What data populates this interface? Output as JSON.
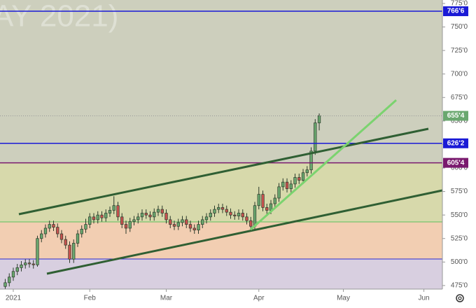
{
  "chart_data": {
    "type": "candlestick",
    "watermark": "AY 2021)",
    "x": [
      -2,
      -1,
      0,
      1,
      2,
      3,
      4,
      5,
      6,
      7,
      8,
      9,
      10,
      11,
      12,
      13,
      14,
      15,
      16,
      17,
      18,
      19,
      20,
      21,
      22,
      23,
      24,
      25,
      26,
      27,
      28,
      29,
      30,
      31,
      32,
      33,
      34,
      35,
      36,
      37,
      38,
      39,
      40,
      41,
      42,
      43,
      44,
      45,
      46,
      47,
      48,
      49,
      50,
      51,
      52,
      53,
      54,
      55,
      56,
      57,
      58,
      59,
      60,
      61,
      62,
      63,
      64,
      65,
      66,
      67,
      68,
      69,
      70,
      71,
      72,
      73,
      74,
      75,
      76
    ],
    "open": [
      474,
      478,
      484,
      490,
      494,
      497,
      499,
      498,
      497,
      525,
      530,
      536,
      540,
      537,
      530,
      524,
      518,
      503,
      520,
      530,
      535,
      540,
      548,
      545,
      550,
      547,
      552,
      555,
      560,
      548,
      540,
      536,
      543,
      545,
      548,
      552,
      550,
      548,
      553,
      556,
      552,
      545,
      540,
      538,
      542,
      545,
      540,
      536,
      534,
      540,
      545,
      548,
      552,
      556,
      558,
      556,
      553,
      550,
      549,
      552,
      548,
      544,
      538,
      560,
      572,
      558,
      555,
      562,
      568,
      580,
      585,
      578,
      583,
      590,
      587,
      595,
      598,
      618,
      648
    ],
    "high": [
      482,
      488,
      494,
      498,
      501,
      503,
      503,
      502,
      528,
      534,
      540,
      544,
      544,
      541,
      534,
      528,
      522,
      524,
      534,
      539,
      546,
      552,
      552,
      554,
      554,
      556,
      559,
      570,
      564,
      552,
      544,
      547,
      549,
      552,
      556,
      556,
      554,
      557,
      560,
      560,
      556,
      549,
      544,
      546,
      549,
      549,
      544,
      540,
      544,
      549,
      552,
      556,
      560,
      562,
      562,
      560,
      557,
      554,
      556,
      556,
      552,
      548,
      564,
      580,
      576,
      562,
      566,
      572,
      584,
      589,
      589,
      587,
      594,
      594,
      599,
      602,
      622,
      652,
      658
    ],
    "low": [
      470,
      474,
      480,
      486,
      490,
      493,
      494,
      493,
      495,
      521,
      526,
      532,
      533,
      526,
      520,
      514,
      499,
      499,
      516,
      526,
      531,
      536,
      541,
      541,
      543,
      543,
      548,
      551,
      544,
      536,
      530,
      532,
      539,
      541,
      544,
      546,
      544,
      544,
      549,
      548,
      541,
      536,
      534,
      534,
      538,
      536,
      532,
      530,
      530,
      536,
      541,
      544,
      548,
      552,
      552,
      549,
      546,
      545,
      545,
      544,
      540,
      534,
      534,
      556,
      554,
      551,
      551,
      558,
      564,
      576,
      574,
      574,
      579,
      583,
      583,
      591,
      594,
      614,
      640
    ],
    "close": [
      478,
      484,
      490,
      494,
      497,
      499,
      498,
      497,
      525,
      530,
      536,
      540,
      537,
      530,
      524,
      518,
      503,
      520,
      530,
      535,
      540,
      548,
      545,
      550,
      547,
      552,
      555,
      560,
      548,
      540,
      536,
      543,
      545,
      548,
      552,
      550,
      548,
      553,
      556,
      552,
      545,
      540,
      538,
      542,
      545,
      540,
      536,
      534,
      540,
      545,
      548,
      552,
      556,
      558,
      556,
      553,
      550,
      549,
      552,
      548,
      544,
      538,
      560,
      572,
      558,
      555,
      562,
      568,
      580,
      585,
      578,
      583,
      590,
      587,
      595,
      598,
      618,
      648,
      655.5
    ],
    "up_color": "#6aa86f",
    "down_color": "#c8524f",
    "xlim": [
      -3.3,
      106.6
    ],
    "xticks": [
      {
        "value": 0,
        "label": "2021"
      },
      {
        "value": 19,
        "label": "Feb"
      },
      {
        "value": 38,
        "label": "Mar"
      },
      {
        "value": 61,
        "label": "Apr"
      },
      {
        "value": 82,
        "label": "May"
      },
      {
        "value": 102,
        "label": "Jun"
      }
    ],
    "ylim": [
      471.2,
      778.7
    ],
    "yticks": [
      {
        "value": 475,
        "label": "475'0"
      },
      {
        "value": 500,
        "label": "500'0"
      },
      {
        "value": 525,
        "label": "525'0"
      },
      {
        "value": 550,
        "label": "550'0"
      },
      {
        "value": 575,
        "label": "575'0"
      },
      {
        "value": 600,
        "label": "600'0"
      },
      {
        "value": 625,
        "label": "625'0"
      },
      {
        "value": 650,
        "label": "650'0"
      },
      {
        "value": 675,
        "label": "675'0"
      },
      {
        "value": 700,
        "label": "700'0"
      },
      {
        "value": 725,
        "label": "725'0"
      },
      {
        "value": 750,
        "label": "750'0"
      },
      {
        "value": 775,
        "label": "775'0"
      }
    ],
    "levels": [
      {
        "value": 766.75,
        "label": "766'6",
        "color": "#1a1ad6"
      },
      {
        "value": 626.25,
        "label": "626'2",
        "color": "#1a1ad6"
      },
      {
        "value": 605.5,
        "label": "605'4",
        "color": "#7a1a6e"
      },
      {
        "value": 655.5,
        "label": "655'4",
        "color": "#6aa86f",
        "dotted": true
      }
    ]
  }
}
